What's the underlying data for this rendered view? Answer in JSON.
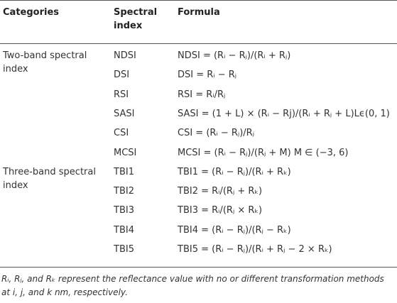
{
  "table": {
    "header": [
      "Categories",
      "Spectral index",
      "Formula"
    ],
    "groups": [
      {
        "category": "Two-band spectral index",
        "rows": [
          [
            "NDSI",
            "NDSI = (Rᵢ − Rⱼ)/(Rᵢ + Rⱼ)"
          ],
          [
            "DSI",
            "DSI = Rᵢ − Rⱼ"
          ],
          [
            "RSI",
            "RSI = Rᵢ/Rⱼ"
          ],
          [
            "SASI",
            "SASI = (1 + L) × (Rᵢ − Rj)/(Rᵢ + Rⱼ + L)Lϵ(0, 1)"
          ],
          [
            "CSI",
            "CSI = (Rᵢ − Rⱼ)/Rⱼ"
          ],
          [
            "MCSI",
            "MCSI = (Rᵢ − Rⱼ)/(Rⱼ + M) M ∈ (−3, 6)"
          ]
        ]
      },
      {
        "category": "Three-band spectral index",
        "rows": [
          [
            "TBI1",
            "TBI1 = (Rᵢ − Rⱼ)/(Rᵢ + Rₖ)"
          ],
          [
            "TBI2",
            "TBI2 = Rᵢ/(Rⱼ + Rₖ)"
          ],
          [
            "TBI3",
            "TBI3 = Rᵢ/(Rⱼ × Rₖ)"
          ],
          [
            "TBI4",
            "TBI4 = (Rᵢ − Rⱼ)/(Rⱼ − Rₖ)"
          ],
          [
            "TBI5",
            "TBI5 = (Rᵢ − Rⱼ)/(Rᵢ + Rⱼ − 2 × Rₖ)"
          ]
        ]
      }
    ],
    "footnote": "Rᵢ, Rⱼ, and Rₖ represent the reflectance value with no or different transformation methods at i, j, and k nm, respectively."
  }
}
